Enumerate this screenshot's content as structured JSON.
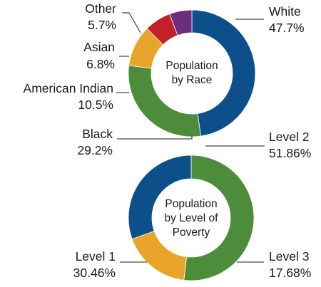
{
  "chart_data": [
    {
      "type": "pie",
      "title_lines": [
        "Population",
        "by Race"
      ],
      "slices": [
        {
          "label": "White",
          "value": 47.7,
          "display": "47.7%",
          "color": "#0d4f8b"
        },
        {
          "label": "Black",
          "value": 29.2,
          "display": "29.2%",
          "color": "#4d8c3b"
        },
        {
          "label": "American Indian",
          "value": 10.5,
          "display": "10.5%",
          "color": "#e8a52a"
        },
        {
          "label": "Asian",
          "value": 6.8,
          "display": "6.8%",
          "color": "#c42126"
        },
        {
          "label": "Other",
          "value": 5.7,
          "display": "5.7%",
          "color": "#6b2e7e"
        }
      ]
    },
    {
      "type": "pie",
      "title_lines": [
        "Population",
        "by Level of",
        "Poverty"
      ],
      "slices": [
        {
          "label": "Level 2",
          "value": 51.86,
          "display": "51.86%",
          "color": "#4d8c3b"
        },
        {
          "label": "Level 3",
          "value": 17.68,
          "display": "17.68%",
          "color": "#e8a52a"
        },
        {
          "label": "Level 1",
          "value": 30.46,
          "display": "30.46%",
          "color": "#0d4f8b"
        }
      ]
    }
  ]
}
